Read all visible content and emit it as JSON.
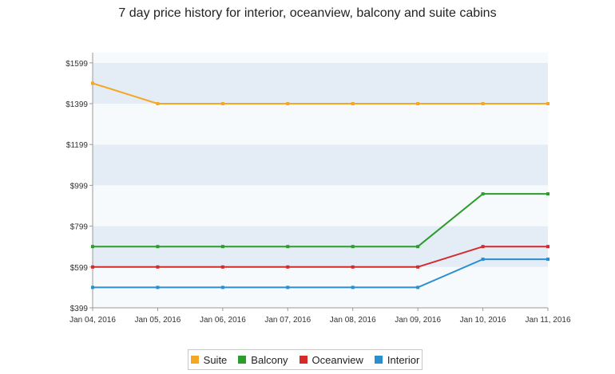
{
  "chart_data": {
    "type": "line",
    "title": "7 day price history for interior, oceanview, balcony and suite cabins",
    "xlabel": "",
    "ylabel": "",
    "categories": [
      "Jan 04, 2016",
      "Jan 05, 2016",
      "Jan 06, 2016",
      "Jan 07, 2016",
      "Jan 08, 2016",
      "Jan 09, 2016",
      "Jan 10, 2016",
      "Jan 11, 2016"
    ],
    "ylim": [
      399,
      1649
    ],
    "yticks": [
      399,
      599,
      799,
      999,
      1199,
      1399,
      1599
    ],
    "ytick_labels": [
      "$399",
      "$599",
      "$799",
      "$999",
      "$1199",
      "$1399",
      "$1599"
    ],
    "series": [
      {
        "name": "Suite",
        "color": "#f5a623",
        "values": [
          1499,
          1399,
          1399,
          1399,
          1399,
          1399,
          1399,
          1399
        ]
      },
      {
        "name": "Balcony",
        "color": "#2a9d2a",
        "values": [
          699,
          699,
          699,
          699,
          699,
          699,
          957,
          957
        ]
      },
      {
        "name": "Oceanview",
        "color": "#d42a2a",
        "values": [
          599,
          599,
          599,
          599,
          599,
          599,
          699,
          699
        ]
      },
      {
        "name": "Interior",
        "color": "#2a8fcf",
        "values": [
          499,
          499,
          499,
          499,
          499,
          499,
          637,
          637
        ]
      }
    ],
    "legend_position": "bottom-center",
    "grid": true
  }
}
